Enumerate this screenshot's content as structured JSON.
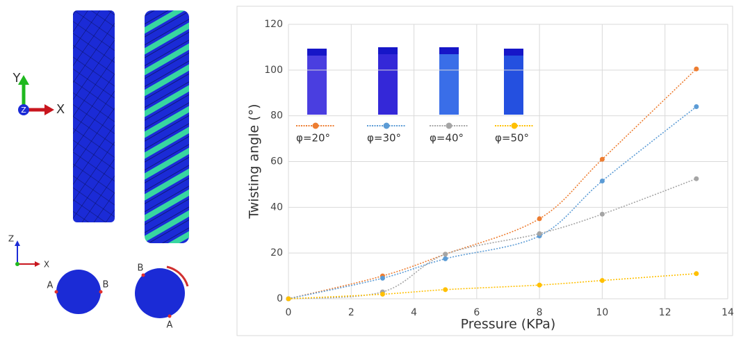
{
  "figure": {
    "axes_top": [
      "Y",
      "Z",
      "X"
    ],
    "axes_bottom": [
      "Z",
      "X"
    ],
    "points_untwisted": [
      "A",
      "B"
    ],
    "points_twisted": [
      "B",
      "A"
    ]
  },
  "chart_data": {
    "type": "line",
    "x_label": "Pressure (KPa)",
    "y_label": "Twisting angle (°)",
    "x": [
      0,
      3,
      5,
      8,
      10,
      13
    ],
    "xlim": [
      0,
      14
    ],
    "xticks": [
      0,
      2,
      4,
      6,
      8,
      10,
      12,
      14
    ],
    "ylim": [
      0,
      120
    ],
    "yticks": [
      0,
      20,
      40,
      60,
      80,
      100,
      120
    ],
    "grid": true,
    "legend": "upper left",
    "series": [
      {
        "name": "φ=20°",
        "color": "#ed7d31",
        "values": [
          0,
          10,
          19.5,
          35,
          61,
          100.5
        ]
      },
      {
        "name": "φ=30°",
        "color": "#5b9bd5",
        "values": [
          0,
          9,
          17.5,
          27.5,
          51.5,
          84
        ]
      },
      {
        "name": "φ=40°",
        "color": "#a5a5a5",
        "values": [
          0,
          3,
          19.5,
          28.5,
          37,
          52.5
        ]
      },
      {
        "name": "φ=50°",
        "color": "#ffc000",
        "values": [
          0,
          2,
          4,
          6,
          8,
          11
        ]
      }
    ]
  }
}
